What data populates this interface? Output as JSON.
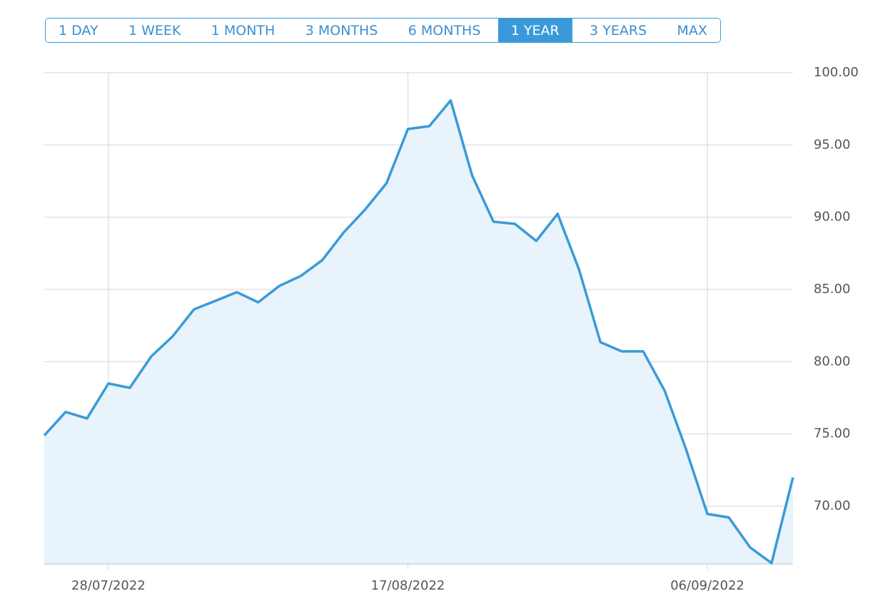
{
  "range_selector": {
    "options": [
      "1 DAY",
      "1 WEEK",
      "1 MONTH",
      "3 MONTHS",
      "6 MONTHS",
      "1 YEAR",
      "3 YEARS",
      "MAX"
    ],
    "selected": "1 YEAR"
  },
  "chart_data": {
    "type": "area",
    "categories": [
      null,
      null,
      null,
      "28/07/2022",
      null,
      null,
      null,
      null,
      null,
      null,
      null,
      null,
      null,
      null,
      null,
      null,
      null,
      "17/08/2022",
      null,
      null,
      null,
      null,
      null,
      null,
      null,
      null,
      null,
      null,
      null,
      null,
      null,
      "06/09/2022",
      null,
      null,
      null,
      null
    ],
    "values": [
      74.89,
      76.52,
      76.07,
      78.49,
      78.19,
      80.36,
      81.75,
      83.62,
      84.21,
      84.81,
      84.11,
      85.25,
      85.94,
      87.03,
      88.95,
      90.53,
      92.35,
      96.1,
      96.3,
      98.08,
      92.9,
      89.69,
      89.54,
      88.36,
      90.23,
      86.38,
      81.35,
      80.71,
      80.71,
      78.0,
      73.95,
      69.46,
      69.22,
      67.14,
      66.06,
      71.98
    ],
    "color": "#3a9ad9",
    "fill": "#e8f3fb",
    "ylim": [
      66,
      100
    ],
    "yticks": [
      {
        "value": 70,
        "label": "70.00"
      },
      {
        "value": 75,
        "label": "75.00"
      },
      {
        "value": 80,
        "label": "80.00"
      },
      {
        "value": 85,
        "label": "85.00"
      },
      {
        "value": 90,
        "label": "90.00"
      },
      {
        "value": 95,
        "label": "95.00"
      },
      {
        "value": 100,
        "label": "100.00"
      }
    ],
    "grid": true,
    "y_axis_side": "right"
  }
}
